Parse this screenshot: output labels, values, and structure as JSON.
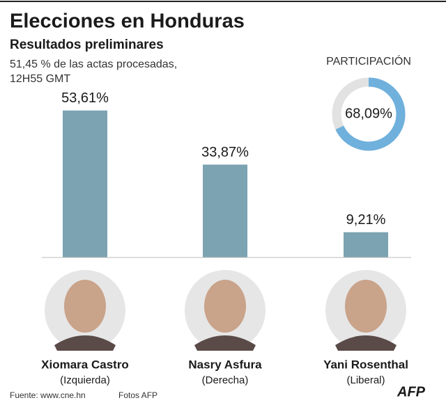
{
  "chart_data": {
    "type": "bar",
    "title": "Elecciones en Honduras",
    "subtitle": "Resultados preliminares",
    "note": [
      "51,45 % de las actas procesadas,",
      "12H55 GMT"
    ],
    "categories": [
      "Xiomara Castro",
      "Nasry Asfura",
      "Yani Rosenthal"
    ],
    "parties": [
      "(Izquierda)",
      "(Derecha)",
      "(Liberal)"
    ],
    "values": [
      53.61,
      33.87,
      9.21
    ],
    "value_labels": [
      "53,61%",
      "33,87%",
      "9,21%"
    ],
    "color": "#7ba3b2",
    "participation": {
      "title": "PARTICIPACIÓN",
      "value": 68.09,
      "value_label": "68,09%",
      "color": "#6fb0dc"
    },
    "source": "Fuente: www.cne.hn",
    "credit": "Fotos AFP",
    "logo": "AFP"
  }
}
